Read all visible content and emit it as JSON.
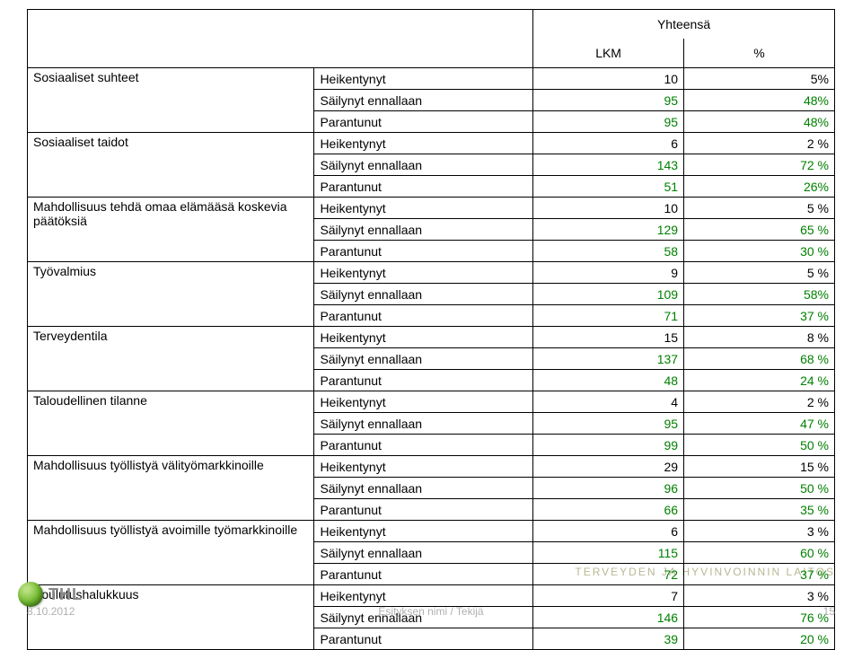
{
  "header": {
    "yhteensa": "Yhteensä",
    "lkm": "LKM",
    "pct": "%"
  },
  "categories": [
    {
      "name": "Sosiaaliset suhteet",
      "rows": [
        {
          "status": "Heikentynyt",
          "lkm": "10",
          "pct": "5%",
          "green": false
        },
        {
          "status": "Säilynyt ennallaan",
          "lkm": "95",
          "pct": "48%",
          "green": true
        },
        {
          "status": "Parantunut",
          "lkm": "95",
          "pct": "48%",
          "green": true
        }
      ]
    },
    {
      "name": "Sosiaaliset taidot",
      "rows": [
        {
          "status": "Heikentynyt",
          "lkm": "6",
          "pct": "2 %",
          "green": false
        },
        {
          "status": "Säilynyt ennallaan",
          "lkm": "143",
          "pct": "72 %",
          "green": true
        },
        {
          "status": "Parantunut",
          "lkm": "51",
          "pct": "26%",
          "green": true
        }
      ]
    },
    {
      "name": "Mahdollisuus tehdä omaa elämääsä  koskevia päätöksiä",
      "rows": [
        {
          "status": "Heikentynyt",
          "lkm": "10",
          "pct": "5 %",
          "green": false
        },
        {
          "status": "Säilynyt ennallaan",
          "lkm": "129",
          "pct": "65 %",
          "green": true
        },
        {
          "status": "Parantunut",
          "lkm": "58",
          "pct": "30 %",
          "green": true
        }
      ]
    },
    {
      "name": "Työvalmius",
      "rows": [
        {
          "status": "Heikentynyt",
          "lkm": "9",
          "pct": "5 %",
          "green": false
        },
        {
          "status": "Säilynyt ennallaan",
          "lkm": "109",
          "pct": "58%",
          "green": true
        },
        {
          "status": "Parantunut",
          "lkm": "71",
          "pct": "37 %",
          "green": true
        }
      ]
    },
    {
      "name": "Terveydentila",
      "rows": [
        {
          "status": "Heikentynyt",
          "lkm": "15",
          "pct": "8 %",
          "green": false
        },
        {
          "status": "Säilynyt ennallaan",
          "lkm": "137",
          "pct": "68 %",
          "green": true
        },
        {
          "status": "Parantunut",
          "lkm": "48",
          "pct": "24 %",
          "green": true
        }
      ]
    },
    {
      "name": "Taloudellinen tilanne",
      "rows": [
        {
          "status": "Heikentynyt",
          "lkm": "4",
          "pct": "2 %",
          "green": false
        },
        {
          "status": "Säilynyt ennallaan",
          "lkm": "95",
          "pct": "47 %",
          "green": true
        },
        {
          "status": "Parantunut",
          "lkm": "99",
          "pct": "50 %",
          "green": true
        }
      ]
    },
    {
      "name": "Mahdollisuus työllistyä välityömarkkinoille",
      "rows": [
        {
          "status": "Heikentynyt",
          "lkm": "29",
          "pct": "15 %",
          "green": false
        },
        {
          "status": "Säilynyt ennallaan",
          "lkm": "96",
          "pct": "50 %",
          "green": true
        },
        {
          "status": "Parantunut",
          "lkm": "66",
          "pct": "35 %",
          "green": true
        }
      ]
    },
    {
      "name": "Mahdollisuus työllistyä avoimille työmarkkinoille",
      "rows": [
        {
          "status": "Heikentynyt",
          "lkm": "6",
          "pct": "3 %",
          "green": false
        },
        {
          "status": "Säilynyt ennallaan",
          "lkm": "115",
          "pct": "60 %",
          "green": true
        },
        {
          "status": "Parantunut",
          "lkm": "72",
          "pct": "37 %",
          "green": true
        }
      ]
    },
    {
      "name": "Koulutushalukkuus",
      "rows": [
        {
          "status": "Heikentynyt",
          "lkm": "7",
          "pct": "3 %",
          "green": false
        },
        {
          "status": "Säilynyt ennallaan",
          "lkm": "146",
          "pct": "76 %",
          "green": true
        },
        {
          "status": "Parantunut",
          "lkm": "39",
          "pct": "20 %",
          "green": true
        }
      ]
    }
  ],
  "footer": {
    "date": "8.10.2012",
    "center": "Esityksen nimi / Tekijä",
    "right_watermark": "TERVEYDEN JA HYVINVOINNIN LAITOS",
    "pagenum": "15",
    "logo_text": "THL"
  }
}
